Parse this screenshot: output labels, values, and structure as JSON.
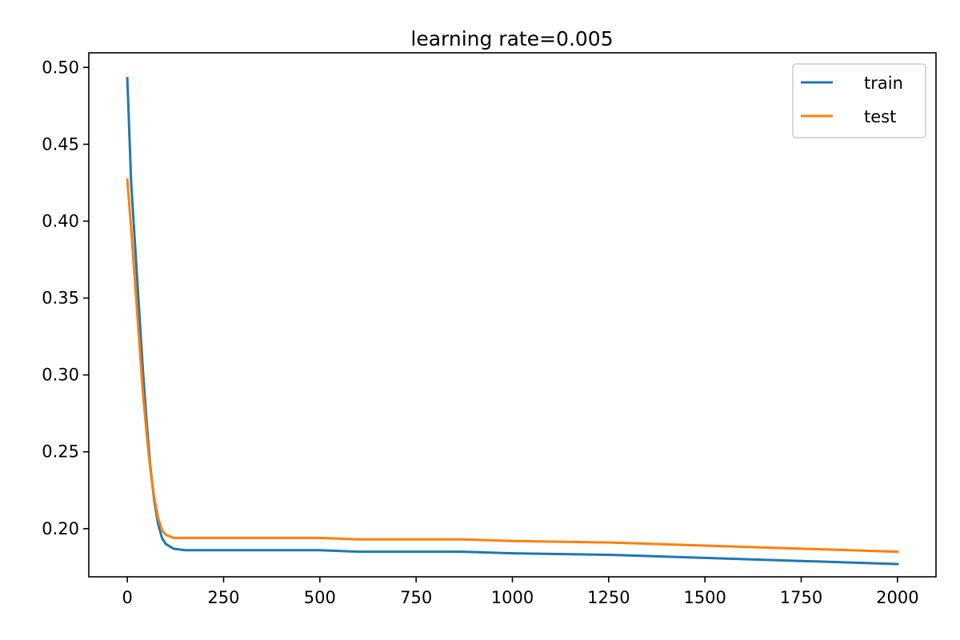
{
  "chart_data": {
    "type": "line",
    "title": "learning rate=0.005",
    "xlabel": "",
    "ylabel": "",
    "xlim": [
      -100,
      2100
    ],
    "ylim": [
      0.1687,
      0.5095
    ],
    "grid": false,
    "legend_position": "top-right",
    "x_ticks": [
      0,
      250,
      500,
      750,
      1000,
      1250,
      1500,
      1750,
      2000
    ],
    "x_tick_labels": [
      "0",
      "250",
      "500",
      "750",
      "1000",
      "1250",
      "1500",
      "1750",
      "2000"
    ],
    "y_ticks": [
      0.2,
      0.25,
      0.3,
      0.35,
      0.4,
      0.45,
      0.5
    ],
    "y_tick_labels": [
      "0.20",
      "0.25",
      "0.30",
      "0.35",
      "0.40",
      "0.45",
      "0.50"
    ],
    "x": [
      0,
      10,
      20,
      30,
      40,
      50,
      60,
      70,
      80,
      90,
      100,
      120,
      150,
      200,
      250,
      300,
      400,
      500,
      600,
      750,
      870,
      1000,
      1250,
      1500,
      1750,
      2000
    ],
    "series": [
      {
        "name": "train",
        "color": "#1f77b4",
        "values": [
          0.493,
          0.425,
          0.385,
          0.345,
          0.305,
          0.27,
          0.24,
          0.218,
          0.203,
          0.194,
          0.19,
          0.187,
          0.186,
          0.186,
          0.186,
          0.186,
          0.186,
          0.186,
          0.185,
          0.185,
          0.185,
          0.184,
          0.183,
          0.181,
          0.179,
          0.177
        ]
      },
      {
        "name": "test",
        "color": "#ff7f0e",
        "values": [
          0.427,
          0.395,
          0.36,
          0.325,
          0.29,
          0.262,
          0.238,
          0.22,
          0.207,
          0.199,
          0.196,
          0.194,
          0.194,
          0.194,
          0.194,
          0.194,
          0.194,
          0.194,
          0.193,
          0.193,
          0.193,
          0.192,
          0.191,
          0.189,
          0.187,
          0.185
        ]
      }
    ]
  }
}
